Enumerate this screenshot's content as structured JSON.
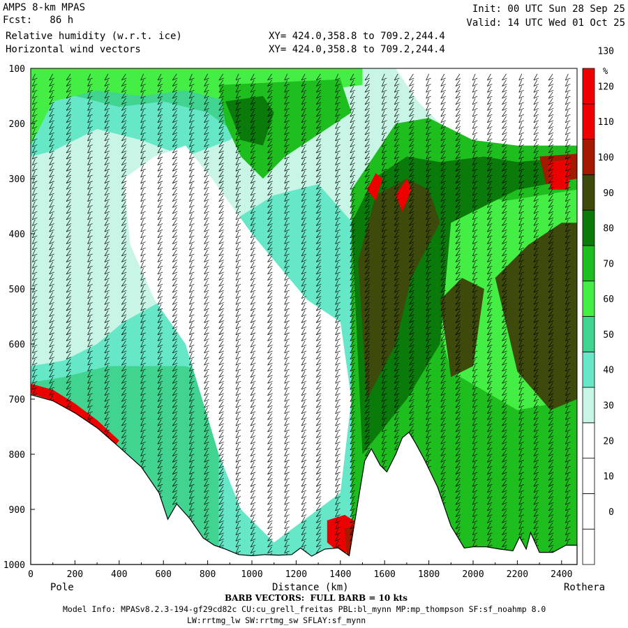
{
  "header": {
    "model": "AMPS 8-km MPAS",
    "forecast": "Fcst:   86 h",
    "field": "Relative humidity (w.r.t. ice)",
    "vectors": "Horizontal wind vectors",
    "init": "Init: 00 UTC Sun 28 Sep 25",
    "valid": "Valid: 14 UTC Wed 01 Oct 25",
    "xy1": "XY= 424.0,358.8 to 709.2,244.4",
    "xy2": "XY= 424.0,358.8 to 709.2,244.4"
  },
  "footer": {
    "endpoint_left": "Pole",
    "endpoint_right": "Rothera",
    "xlabel": "Distance (km)",
    "barb_note": "BARB VECTORS:  FULL BARB = 10 kts",
    "model_info": "Model Info: MPASv8.2.3-194-gf29cd82c CU:cu_grell_freitas PBL:bl_mynn MP:mp_thompson SF:sf_noahmp 8.0",
    "model_info2": "LW:rrtmg_lw SW:rrtmg_sw SFLAY:sf_mynn"
  },
  "colors": {
    "white": "#ffffff",
    "lightest": "#c8f5e6",
    "aqua": "#66e8c8",
    "seafoam": "#40d490",
    "bright_green": "#44ee44",
    "green": "#1fbe1f",
    "dark_green": "#0a7a0a",
    "olive": "#3d4a0c",
    "brown_red": "#a31a00",
    "red": "#ee0000",
    "terrain": "#ffffff"
  },
  "chart_data": {
    "type": "heatmap",
    "title": "Relative humidity (w.r.t. ice)",
    "xlabel": "Distance (km)",
    "ylabel": "",
    "xlim": [
      0,
      2470
    ],
    "ylim": [
      1000,
      100
    ],
    "x_ticks": [
      "0",
      "200",
      "400",
      "600",
      "800",
      "1000",
      "1200",
      "1400",
      "1600",
      "1800",
      "2000",
      "2200",
      "2400"
    ],
    "y_ticks": [
      "100",
      "200",
      "300",
      "400",
      "500",
      "600",
      "700",
      "800",
      "900",
      "1000"
    ],
    "colorbar": {
      "unit": "%",
      "levels": [
        -10,
        0,
        10,
        20,
        30,
        40,
        50,
        60,
        70,
        80,
        90,
        100,
        110,
        120,
        130,
        140
      ],
      "labels": [
        "0",
        "10",
        "20",
        "30",
        "40",
        "50",
        "60",
        "70",
        "80",
        "90",
        "100",
        "110",
        "120",
        "130"
      ],
      "colors": [
        "#ffffff",
        "#ffffff",
        "#ffffff",
        "#ffffff",
        "#c8f5e6",
        "#66e8c8",
        "#40d490",
        "#44ee44",
        "#1fbe1f",
        "#0a7a0a",
        "#3d4a0c",
        "#a31a00",
        "#ee0000",
        "#ee0000"
      ]
    },
    "terrain_profile": {
      "distance_km": [
        0,
        100,
        200,
        300,
        400,
        500,
        580,
        620,
        660,
        720,
        780,
        830,
        880,
        940,
        1000,
        1060,
        1120,
        1180,
        1220,
        1270,
        1330,
        1390,
        1440,
        1480,
        1510,
        1540,
        1580,
        1610,
        1650,
        1680,
        1710,
        1740,
        1780,
        1840,
        1900,
        1960,
        2000,
        2060,
        2120,
        2180,
        2210,
        2240,
        2260,
        2300,
        2360,
        2420,
        2470
      ],
      "surface_pressure_hpa": [
        692,
        703,
        725,
        752,
        787,
        823,
        870,
        918,
        890,
        917,
        952,
        965,
        972,
        982,
        984,
        982,
        983,
        982,
        970,
        985,
        972,
        970,
        984,
        885,
        812,
        790,
        820,
        832,
        800,
        770,
        760,
        780,
        810,
        860,
        930,
        970,
        968,
        968,
        972,
        975,
        950,
        972,
        942,
        978,
        978,
        965,
        965
      ]
    },
    "barb_columns_km": [
      20,
      100,
      180,
      270,
      350,
      430,
      510,
      590,
      660,
      730,
      800,
      870,
      940,
      1010,
      1090,
      1160,
      1240,
      1310,
      1390,
      1460,
      1530,
      1600,
      1660,
      1730,
      1800,
      1870,
      1940,
      2010,
      2080,
      2150,
      2220,
      2290,
      2360,
      2430
    ]
  }
}
